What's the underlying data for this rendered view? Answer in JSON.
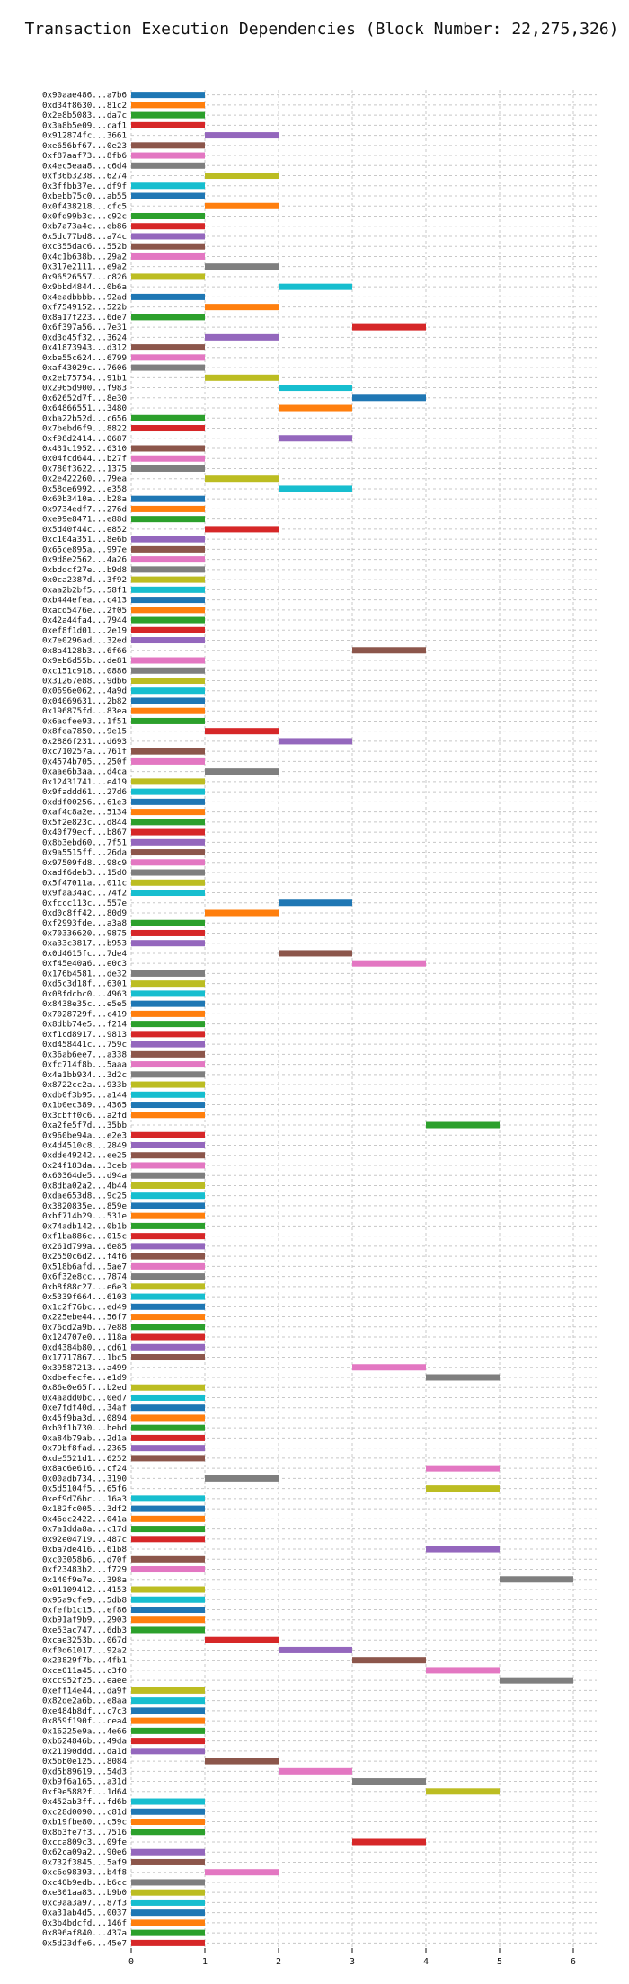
{
  "chart_data": {
    "type": "bar",
    "orientation": "horizontal",
    "title": "Transaction Execution Dependencies (Block Number: 22,275,326)",
    "xlabel": "",
    "ylabel": "",
    "xlim": [
      0,
      6.3
    ],
    "xticks": [
      "0",
      "1",
      "2",
      "3",
      "4",
      "5",
      "6"
    ],
    "grid": true,
    "colors": {
      "blue": "#1f77b4",
      "orange": "#ff7f0e",
      "green": "#2ca02c",
      "red": "#d62728",
      "purple": "#9467bd",
      "brown": "#8c564b",
      "pink": "#e377c2",
      "gray": "#7f7f7f",
      "olive": "#bcbd22",
      "cyan": "#17becf"
    },
    "transactions": [
      {
        "label": "0x90aae486...a7b6",
        "start": 0,
        "color": "blue"
      },
      {
        "label": "0xd34f8630...81c2",
        "start": 0,
        "color": "orange"
      },
      {
        "label": "0x2e8b5083...da7c",
        "start": 0,
        "color": "green"
      },
      {
        "label": "0x3a8b5e09...caf1",
        "start": 0,
        "color": "red"
      },
      {
        "label": "0x912874fc...3661",
        "start": 1,
        "color": "purple"
      },
      {
        "label": "0xe656bf67...0e23",
        "start": 0,
        "color": "brown"
      },
      {
        "label": "0xf87aaf73...8fb6",
        "start": 0,
        "color": "pink"
      },
      {
        "label": "0x4ec5eaa8...c6d4",
        "start": 0,
        "color": "gray"
      },
      {
        "label": "0xf36b3238...6274",
        "start": 1,
        "color": "olive"
      },
      {
        "label": "0x3ffbb37e...df9f",
        "start": 0,
        "color": "cyan"
      },
      {
        "label": "0xbebb75c0...ab55",
        "start": 0,
        "color": "blue"
      },
      {
        "label": "0x0f438218...cfc5",
        "start": 1,
        "color": "orange"
      },
      {
        "label": "0x0fd99b3c...c92c",
        "start": 0,
        "color": "green"
      },
      {
        "label": "0xb7a73a4c...eb86",
        "start": 0,
        "color": "red"
      },
      {
        "label": "0x5dc77bd8...a74c",
        "start": 0,
        "color": "purple"
      },
      {
        "label": "0xc355dac6...552b",
        "start": 0,
        "color": "brown"
      },
      {
        "label": "0x4c1b638b...29a2",
        "start": 0,
        "color": "pink"
      },
      {
        "label": "0x317e2111...e9a2",
        "start": 1,
        "color": "gray"
      },
      {
        "label": "0x96526557...c826",
        "start": 0,
        "color": "olive"
      },
      {
        "label": "0x9bbd4844...0b6a",
        "start": 2,
        "color": "cyan"
      },
      {
        "label": "0x4eadbbbb...92ad",
        "start": 0,
        "color": "blue"
      },
      {
        "label": "0xf7549152...522b",
        "start": 1,
        "color": "orange"
      },
      {
        "label": "0x8a17f223...6de7",
        "start": 0,
        "color": "green"
      },
      {
        "label": "0x6f397a56...7e31",
        "start": 3,
        "color": "red"
      },
      {
        "label": "0xd3d45f32...3624",
        "start": 1,
        "color": "purple"
      },
      {
        "label": "0x41873943...d312",
        "start": 0,
        "color": "brown"
      },
      {
        "label": "0xbe55c624...6799",
        "start": 0,
        "color": "pink"
      },
      {
        "label": "0xaf43029c...7606",
        "start": 0,
        "color": "gray"
      },
      {
        "label": "0x2eb75754...91b1",
        "start": 1,
        "color": "olive"
      },
      {
        "label": "0x2965d900...f983",
        "start": 2,
        "color": "cyan"
      },
      {
        "label": "0x62652d7f...8e30",
        "start": 3,
        "color": "blue"
      },
      {
        "label": "0x64866551...3480",
        "start": 2,
        "color": "orange"
      },
      {
        "label": "0xba22b52d...c656",
        "start": 0,
        "color": "green"
      },
      {
        "label": "0x7bebd6f9...8822",
        "start": 0,
        "color": "red"
      },
      {
        "label": "0xf98d2414...0687",
        "start": 2,
        "color": "purple"
      },
      {
        "label": "0x431c1952...6310",
        "start": 0,
        "color": "brown"
      },
      {
        "label": "0x04fcd644...b27f",
        "start": 0,
        "color": "pink"
      },
      {
        "label": "0x780f3622...1375",
        "start": 0,
        "color": "gray"
      },
      {
        "label": "0x2e422260...79ea",
        "start": 1,
        "color": "olive"
      },
      {
        "label": "0x58de6992...e358",
        "start": 2,
        "color": "cyan"
      },
      {
        "label": "0x60b3410a...b28a",
        "start": 0,
        "color": "blue"
      },
      {
        "label": "0x9734edf7...276d",
        "start": 0,
        "color": "orange"
      },
      {
        "label": "0xe99e8471...e88d",
        "start": 0,
        "color": "green"
      },
      {
        "label": "0x5d40f44c...e852",
        "start": 1,
        "color": "red"
      },
      {
        "label": "0xc104a351...8e6b",
        "start": 0,
        "color": "purple"
      },
      {
        "label": "0x65ce895a...997e",
        "start": 0,
        "color": "brown"
      },
      {
        "label": "0x9d8e2562...4a26",
        "start": 0,
        "color": "pink"
      },
      {
        "label": "0xbddcf27e...b9d8",
        "start": 0,
        "color": "gray"
      },
      {
        "label": "0x0ca2387d...3f92",
        "start": 0,
        "color": "olive"
      },
      {
        "label": "0xaa2b2bf5...58f1",
        "start": 0,
        "color": "cyan"
      },
      {
        "label": "0xb444efea...c413",
        "start": 0,
        "color": "blue"
      },
      {
        "label": "0xacd5476e...2f05",
        "start": 0,
        "color": "orange"
      },
      {
        "label": "0x42a44fa4...7944",
        "start": 0,
        "color": "green"
      },
      {
        "label": "0xef8f1d01...2e19",
        "start": 0,
        "color": "red"
      },
      {
        "label": "0x7e0296ad...32ed",
        "start": 0,
        "color": "purple"
      },
      {
        "label": "0x8a4128b3...6f66",
        "start": 3,
        "color": "brown"
      },
      {
        "label": "0x9eb6d55b...de81",
        "start": 0,
        "color": "pink"
      },
      {
        "label": "0xc151c918...0886",
        "start": 0,
        "color": "gray"
      },
      {
        "label": "0x31267e88...9db6",
        "start": 0,
        "color": "olive"
      },
      {
        "label": "0x0696e062...4a9d",
        "start": 0,
        "color": "cyan"
      },
      {
        "label": "0x04069631...2b82",
        "start": 0,
        "color": "blue"
      },
      {
        "label": "0x196875fd...83ea",
        "start": 0,
        "color": "orange"
      },
      {
        "label": "0x6adfee93...1f51",
        "start": 0,
        "color": "green"
      },
      {
        "label": "0x8fea7850...9e15",
        "start": 1,
        "color": "red"
      },
      {
        "label": "0x2886f231...d693",
        "start": 2,
        "color": "purple"
      },
      {
        "label": "0xc710257a...761f",
        "start": 0,
        "color": "brown"
      },
      {
        "label": "0x4574b705...250f",
        "start": 0,
        "color": "pink"
      },
      {
        "label": "0xaae6b3aa...d4ca",
        "start": 1,
        "color": "gray"
      },
      {
        "label": "0x12431741...e419",
        "start": 0,
        "color": "olive"
      },
      {
        "label": "0x9faddd61...27d6",
        "start": 0,
        "color": "cyan"
      },
      {
        "label": "0xddf00256...61e3",
        "start": 0,
        "color": "blue"
      },
      {
        "label": "0xaf4c8a2e...5134",
        "start": 0,
        "color": "orange"
      },
      {
        "label": "0x5f2e823c...d844",
        "start": 0,
        "color": "green"
      },
      {
        "label": "0x40f79ecf...b867",
        "start": 0,
        "color": "red"
      },
      {
        "label": "0x8b3ebd60...7f51",
        "start": 0,
        "color": "purple"
      },
      {
        "label": "0x9a5515ff...26da",
        "start": 0,
        "color": "brown"
      },
      {
        "label": "0x97509fd8...98c9",
        "start": 0,
        "color": "pink"
      },
      {
        "label": "0xadf6deb3...15d0",
        "start": 0,
        "color": "gray"
      },
      {
        "label": "0x5f47011a...011c",
        "start": 0,
        "color": "olive"
      },
      {
        "label": "0x9faa34ac...74f2",
        "start": 0,
        "color": "cyan"
      },
      {
        "label": "0xfccc113c...557e",
        "start": 2,
        "color": "blue"
      },
      {
        "label": "0xd0c8ff42...80d9",
        "start": 1,
        "color": "orange"
      },
      {
        "label": "0xf2993fde...a3a8",
        "start": 0,
        "color": "green"
      },
      {
        "label": "0x70336620...9875",
        "start": 0,
        "color": "red"
      },
      {
        "label": "0xa33c3817...b953",
        "start": 0,
        "color": "purple"
      },
      {
        "label": "0x0d4615fc...7de4",
        "start": 2,
        "color": "brown"
      },
      {
        "label": "0xf45e40a6...e0c3",
        "start": 3,
        "color": "pink"
      },
      {
        "label": "0x176b4581...de32",
        "start": 0,
        "color": "gray"
      },
      {
        "label": "0xd5c3d18f...6301",
        "start": 0,
        "color": "olive"
      },
      {
        "label": "0x08fdcbc0...4963",
        "start": 0,
        "color": "cyan"
      },
      {
        "label": "0x8438e35c...e5e5",
        "start": 0,
        "color": "blue"
      },
      {
        "label": "0x7028729f...c419",
        "start": 0,
        "color": "orange"
      },
      {
        "label": "0x8dbb74e5...f214",
        "start": 0,
        "color": "green"
      },
      {
        "label": "0xf1cd8917...9813",
        "start": 0,
        "color": "red"
      },
      {
        "label": "0xd458441c...759c",
        "start": 0,
        "color": "purple"
      },
      {
        "label": "0x36ab6ee7...a338",
        "start": 0,
        "color": "brown"
      },
      {
        "label": "0xfc714f8b...5aaa",
        "start": 0,
        "color": "pink"
      },
      {
        "label": "0x4a1bb934...3d2c",
        "start": 0,
        "color": "gray"
      },
      {
        "label": "0x8722cc2a...933b",
        "start": 0,
        "color": "olive"
      },
      {
        "label": "0xdb0f3b95...a144",
        "start": 0,
        "color": "cyan"
      },
      {
        "label": "0x1b0ec389...4365",
        "start": 0,
        "color": "blue"
      },
      {
        "label": "0x3cbff0c6...a2fd",
        "start": 0,
        "color": "orange"
      },
      {
        "label": "0xa2fe5f7d...35bb",
        "start": 4,
        "color": "green"
      },
      {
        "label": "0x960be94a...e2e3",
        "start": 0,
        "color": "red"
      },
      {
        "label": "0x4d4510c8...2849",
        "start": 0,
        "color": "purple"
      },
      {
        "label": "0xdde49242...ee25",
        "start": 0,
        "color": "brown"
      },
      {
        "label": "0x24f183da...3ceb",
        "start": 0,
        "color": "pink"
      },
      {
        "label": "0x60364de5...d94a",
        "start": 0,
        "color": "gray"
      },
      {
        "label": "0x8dba02a2...4b44",
        "start": 0,
        "color": "olive"
      },
      {
        "label": "0xdae653d8...9c25",
        "start": 0,
        "color": "cyan"
      },
      {
        "label": "0x3820835e...859e",
        "start": 0,
        "color": "blue"
      },
      {
        "label": "0xbf714b29...531e",
        "start": 0,
        "color": "orange"
      },
      {
        "label": "0x74adb142...0b1b",
        "start": 0,
        "color": "green"
      },
      {
        "label": "0xf1ba886c...015c",
        "start": 0,
        "color": "red"
      },
      {
        "label": "0x261d799a...6e85",
        "start": 0,
        "color": "purple"
      },
      {
        "label": "0x2550c6d2...f4f6",
        "start": 0,
        "color": "brown"
      },
      {
        "label": "0x518b6afd...5ae7",
        "start": 0,
        "color": "pink"
      },
      {
        "label": "0x6f32e8cc...7874",
        "start": 0,
        "color": "gray"
      },
      {
        "label": "0xb8f88c27...e6e3",
        "start": 0,
        "color": "olive"
      },
      {
        "label": "0x5339f664...6103",
        "start": 0,
        "color": "cyan"
      },
      {
        "label": "0x1c2f76bc...ed49",
        "start": 0,
        "color": "blue"
      },
      {
        "label": "0x225ebe44...56f7",
        "start": 0,
        "color": "orange"
      },
      {
        "label": "0x76dd2a9b...7e88",
        "start": 0,
        "color": "green"
      },
      {
        "label": "0x124707e0...118a",
        "start": 0,
        "color": "red"
      },
      {
        "label": "0xd4384b80...cd61",
        "start": 0,
        "color": "purple"
      },
      {
        "label": "0x17717867...1bc5",
        "start": 0,
        "color": "brown"
      },
      {
        "label": "0x39587213...a499",
        "start": 3,
        "color": "pink"
      },
      {
        "label": "0xdbefecfe...e1d9",
        "start": 4,
        "color": "gray"
      },
      {
        "label": "0x86e0e65f...b2ed",
        "start": 0,
        "color": "olive"
      },
      {
        "label": "0x4aadd0bc...0ed7",
        "start": 0,
        "color": "cyan"
      },
      {
        "label": "0xe7fdf40d...34af",
        "start": 0,
        "color": "blue"
      },
      {
        "label": "0x45f9ba3d...0894",
        "start": 0,
        "color": "orange"
      },
      {
        "label": "0xb0f1b730...bebd",
        "start": 0,
        "color": "green"
      },
      {
        "label": "0xa84b79ab...2d1a",
        "start": 0,
        "color": "red"
      },
      {
        "label": "0x79bf8fad...2365",
        "start": 0,
        "color": "purple"
      },
      {
        "label": "0xde5521d1...6252",
        "start": 0,
        "color": "brown"
      },
      {
        "label": "0x8ac6e616...cf24",
        "start": 4,
        "color": "pink"
      },
      {
        "label": "0x00adb734...3190",
        "start": 1,
        "color": "gray"
      },
      {
        "label": "0x5d5104f5...65f6",
        "start": 4,
        "color": "olive"
      },
      {
        "label": "0xef9d76bc...16a3",
        "start": 0,
        "color": "cyan"
      },
      {
        "label": "0x182fc005...3df2",
        "start": 0,
        "color": "blue"
      },
      {
        "label": "0x46dc2422...041a",
        "start": 0,
        "color": "orange"
      },
      {
        "label": "0x7a1dda8a...c17d",
        "start": 0,
        "color": "green"
      },
      {
        "label": "0x92e04719...487c",
        "start": 0,
        "color": "red"
      },
      {
        "label": "0xba7de416...61b8",
        "start": 4,
        "color": "purple"
      },
      {
        "label": "0xc03058b6...d70f",
        "start": 0,
        "color": "brown"
      },
      {
        "label": "0xf23483b2...f729",
        "start": 0,
        "color": "pink"
      },
      {
        "label": "0x140f9e7e...398a",
        "start": 5,
        "color": "gray"
      },
      {
        "label": "0x01109412...4153",
        "start": 0,
        "color": "olive"
      },
      {
        "label": "0x95a9cfe9...5db8",
        "start": 0,
        "color": "cyan"
      },
      {
        "label": "0xfefb1c15...ef86",
        "start": 0,
        "color": "blue"
      },
      {
        "label": "0xb91af9b9...2903",
        "start": 0,
        "color": "orange"
      },
      {
        "label": "0xe53ac747...6db3",
        "start": 0,
        "color": "green"
      },
      {
        "label": "0xcae3253b...067d",
        "start": 1,
        "color": "red"
      },
      {
        "label": "0xf0d61017...92a2",
        "start": 2,
        "color": "purple"
      },
      {
        "label": "0x23829f7b...4fb1",
        "start": 3,
        "color": "brown"
      },
      {
        "label": "0xce011a45...c3f0",
        "start": 4,
        "color": "pink"
      },
      {
        "label": "0xcc952f25...eaee",
        "start": 5,
        "color": "gray"
      },
      {
        "label": "0xeff14e44...da9f",
        "start": 0,
        "color": "olive"
      },
      {
        "label": "0x82de2a6b...e8aa",
        "start": 0,
        "color": "cyan"
      },
      {
        "label": "0xe484b8df...c7c3",
        "start": 0,
        "color": "blue"
      },
      {
        "label": "0x859f190f...cea4",
        "start": 0,
        "color": "orange"
      },
      {
        "label": "0x16225e9a...4e66",
        "start": 0,
        "color": "green"
      },
      {
        "label": "0xb624846b...49da",
        "start": 0,
        "color": "red"
      },
      {
        "label": "0x21190ddd...da1d",
        "start": 0,
        "color": "purple"
      },
      {
        "label": "0x5bb0e125...8084",
        "start": 1,
        "color": "brown"
      },
      {
        "label": "0xd5b89619...54d3",
        "start": 2,
        "color": "pink"
      },
      {
        "label": "0xb9f6a165...a31d",
        "start": 3,
        "color": "gray"
      },
      {
        "label": "0xf9e5882f...1d64",
        "start": 4,
        "color": "olive"
      },
      {
        "label": "0x452ab3ff...fd6b",
        "start": 0,
        "color": "cyan"
      },
      {
        "label": "0xc28d0090...c81d",
        "start": 0,
        "color": "blue"
      },
      {
        "label": "0xb19fbe80...c59c",
        "start": 0,
        "color": "orange"
      },
      {
        "label": "0x8b3fe7f3...7516",
        "start": 0,
        "color": "green"
      },
      {
        "label": "0xcca809c3...09fe",
        "start": 3,
        "color": "red"
      },
      {
        "label": "0x62ca09a2...90e6",
        "start": 0,
        "color": "purple"
      },
      {
        "label": "0x732f3845...5af9",
        "start": 0,
        "color": "brown"
      },
      {
        "label": "0xc6d98393...b4f8",
        "start": 1,
        "color": "pink"
      },
      {
        "label": "0xc40b9edb...b6cc",
        "start": 0,
        "color": "gray"
      },
      {
        "label": "0xe301aa83...b9b0",
        "start": 0,
        "color": "olive"
      },
      {
        "label": "0xc9aa3a97...87f3",
        "start": 0,
        "color": "cyan"
      },
      {
        "label": "0xa31ab4d5...0037",
        "start": 0,
        "color": "blue"
      },
      {
        "label": "0x3b4bdcfd...146f",
        "start": 0,
        "color": "orange"
      },
      {
        "label": "0x896af840...437a",
        "start": 0,
        "color": "green"
      },
      {
        "label": "0x5d23dfe6...45e7",
        "start": 0,
        "color": "red"
      }
    ]
  }
}
